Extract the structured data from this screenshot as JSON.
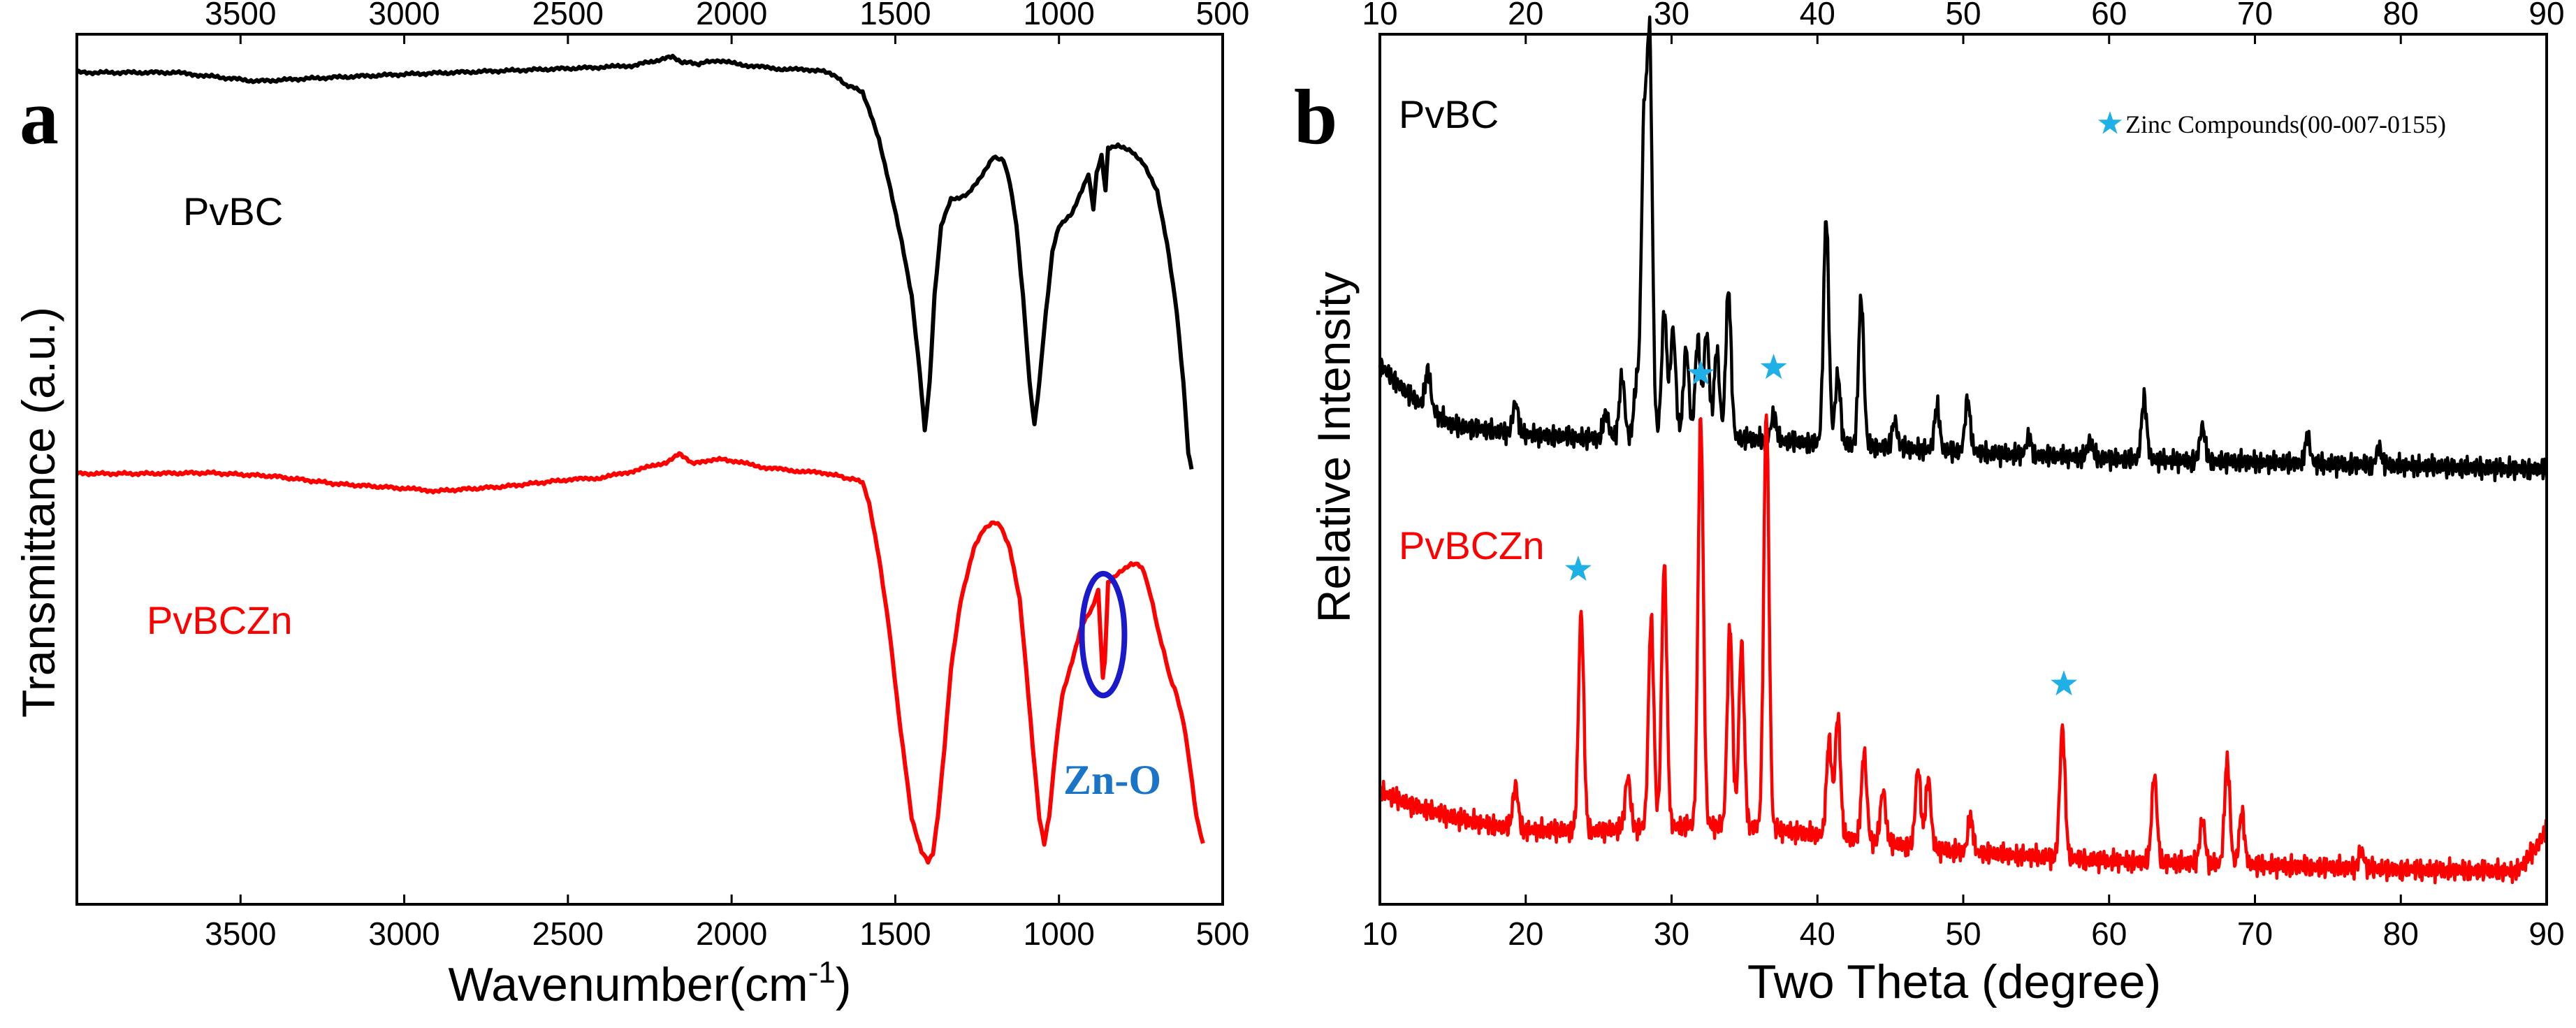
{
  "chart_data": [
    {
      "panel_label": "a",
      "type": "line",
      "xlabel": "Wavenumber(cm",
      "xlabel_sup": "-1",
      "xlabel_end": ")",
      "ylabel": "Transmittance (a.u.)",
      "xlim": [
        4000,
        500
      ],
      "x_reversed": true,
      "xticks": [
        3500,
        3000,
        2500,
        2000,
        1500,
        1000,
        500
      ],
      "ylim": [
        0,
        100
      ],
      "y_values_relative": true,
      "series": [
        {
          "name": "PvBC",
          "color": "#000000",
          "points": [
            [
              4000,
              95.6
            ],
            [
              3700,
              95.6
            ],
            [
              3600,
              95.2
            ],
            [
              3450,
              94.6
            ],
            [
              3300,
              94.9
            ],
            [
              3000,
              95.4
            ],
            [
              2700,
              95.8
            ],
            [
              2400,
              96.2
            ],
            [
              2300,
              96.4
            ],
            [
              2180,
              97.4
            ],
            [
              2150,
              96.8
            ],
            [
              2100,
              96.6
            ],
            [
              2050,
              97.0
            ],
            [
              1950,
              96.4
            ],
            [
              1850,
              96.0
            ],
            [
              1750,
              95.9
            ],
            [
              1700,
              95.6
            ],
            [
              1650,
              94.2
            ],
            [
              1600,
              93.4
            ],
            [
              1550,
              88.0
            ],
            [
              1520,
              83.0
            ],
            [
              1480,
              76.0
            ],
            [
              1450,
              70.0
            ],
            [
              1425,
              61.0
            ],
            [
              1410,
              54.5
            ],
            [
              1395,
              60.0
            ],
            [
              1380,
              70.0
            ],
            [
              1360,
              78.0
            ],
            [
              1330,
              81.0
            ],
            [
              1280,
              81.5
            ],
            [
              1240,
              83.5
            ],
            [
              1200,
              86.0
            ],
            [
              1170,
              85.5
            ],
            [
              1150,
              83.0
            ],
            [
              1130,
              78.0
            ],
            [
              1110,
              70.0
            ],
            [
              1090,
              60.0
            ],
            [
              1075,
              55.0
            ],
            [
              1060,
              60.0
            ],
            [
              1040,
              68.0
            ],
            [
              1020,
              75.0
            ],
            [
              1000,
              78.0
            ],
            [
              960,
              79.5
            ],
            [
              930,
              82.0
            ],
            [
              910,
              84.0
            ],
            [
              895,
              80.0
            ],
            [
              885,
              84.0
            ],
            [
              870,
              86.0
            ],
            [
              858,
              82.0
            ],
            [
              850,
              87.0
            ],
            [
              820,
              87.2
            ],
            [
              780,
              86.5
            ],
            [
              740,
              85.0
            ],
            [
              700,
              82.0
            ],
            [
              670,
              76.0
            ],
            [
              640,
              68.0
            ],
            [
              620,
              60.0
            ],
            [
              605,
              52.0
            ],
            [
              595,
              50.0
            ]
          ]
        },
        {
          "name": "PvBCZn",
          "color": "#ff0000",
          "points": [
            [
              4000,
              49.5
            ],
            [
              3800,
              49.5
            ],
            [
              3600,
              49.6
            ],
            [
              3400,
              49.2
            ],
            [
              3200,
              48.3
            ],
            [
              3000,
              47.8
            ],
            [
              2900,
              47.5
            ],
            [
              2700,
              48.0
            ],
            [
              2500,
              48.8
            ],
            [
              2400,
              49.0
            ],
            [
              2300,
              49.8
            ],
            [
              2200,
              50.8
            ],
            [
              2160,
              51.8
            ],
            [
              2120,
              50.6
            ],
            [
              2050,
              51.2
            ],
            [
              2000,
              51.0
            ],
            [
              1900,
              50.2
            ],
            [
              1800,
              49.8
            ],
            [
              1700,
              49.5
            ],
            [
              1650,
              49.0
            ],
            [
              1600,
              48.6
            ],
            [
              1580,
              46.0
            ],
            [
              1550,
              40.0
            ],
            [
              1520,
              32.0
            ],
            [
              1490,
              22.0
            ],
            [
              1470,
              16.0
            ],
            [
              1450,
              10.0
            ],
            [
              1420,
              6.0
            ],
            [
              1400,
              5.0
            ],
            [
              1385,
              5.8
            ],
            [
              1370,
              10.0
            ],
            [
              1350,
              18.0
            ],
            [
              1330,
              27.0
            ],
            [
              1300,
              35.0
            ],
            [
              1260,
              41.0
            ],
            [
              1230,
              43.0
            ],
            [
              1200,
              44.0
            ],
            [
              1180,
              43.5
            ],
            [
              1150,
              41.0
            ],
            [
              1120,
              35.0
            ],
            [
              1100,
              27.0
            ],
            [
              1080,
              18.0
            ],
            [
              1060,
              10.0
            ],
            [
              1045,
              7.0
            ],
            [
              1030,
              10.0
            ],
            [
              1010,
              18.0
            ],
            [
              990,
              24.0
            ],
            [
              960,
              28.0
            ],
            [
              930,
              32.0
            ],
            [
              900,
              34.0
            ],
            [
              880,
              36.0
            ],
            [
              866,
              26.0
            ],
            [
              860,
              28.0
            ],
            [
              850,
              37.0
            ],
            [
              820,
              38.0
            ],
            [
              780,
              39.0
            ],
            [
              760,
              39.2
            ],
            [
              740,
              38.2
            ],
            [
              720,
              35.5
            ],
            [
              700,
              32.0
            ],
            [
              680,
              29.0
            ],
            [
              660,
              26.0
            ],
            [
              640,
              24.0
            ],
            [
              620,
              21.0
            ],
            [
              600,
              16.0
            ],
            [
              580,
              10.0
            ],
            [
              560,
              7.0
            ]
          ]
        }
      ],
      "annotations": [
        {
          "text": "PvBC",
          "color": "#000000"
        },
        {
          "text": "PvBCZn",
          "color": "#ff0000"
        },
        {
          "text": "Zn-O",
          "color": "#1a75c9",
          "circle_color": "#1a1acc",
          "circle_center": [
            865,
            31
          ],
          "circle_radius_x": [
            800,
            930
          ],
          "circle_radius_y": [
            24,
            38
          ]
        }
      ]
    },
    {
      "panel_label": "b",
      "type": "line",
      "xlabel": "Two Theta (degree)",
      "ylabel": "Relative Intensity",
      "xlim": [
        10,
        90
      ],
      "xticks": [
        10,
        20,
        30,
        40,
        50,
        60,
        70,
        80,
        90
      ],
      "ylim": [
        0,
        100
      ],
      "y_values_relative": true,
      "series": [
        {
          "name": "PvBC",
          "color": "#000000",
          "baseline": [
            [
              10,
              62.0
            ],
            [
              12,
              58.5
            ],
            [
              15,
              55.0
            ],
            [
              20,
              54.0
            ],
            [
              25,
              53.5
            ],
            [
              30,
              54.0
            ],
            [
              35,
              53.5
            ],
            [
              40,
              53.0
            ],
            [
              45,
              52.5
            ],
            [
              50,
              52.0
            ],
            [
              60,
              51.2
            ],
            [
              70,
              50.8
            ],
            [
              80,
              50.4
            ],
            [
              90,
              50.0
            ]
          ],
          "peaks": [
            [
              13.3,
              4.5
            ],
            [
              19.3,
              3.5
            ],
            [
              25.5,
              3.0
            ],
            [
              26.6,
              7.0
            ],
            [
              27.6,
              6.0
            ],
            [
              28.1,
              34.0
            ],
            [
              28.5,
              44.0
            ],
            [
              29.5,
              14.0
            ],
            [
              30.1,
              12.0
            ],
            [
              31.0,
              10.0
            ],
            [
              31.8,
              11.0
            ],
            [
              32.4,
              12.0
            ],
            [
              33.1,
              10.0
            ],
            [
              33.9,
              17.0
            ],
            [
              37.0,
              3.0
            ],
            [
              40.6,
              26.0
            ],
            [
              41.4,
              8.0
            ],
            [
              43.0,
              17.0
            ],
            [
              45.3,
              3.0
            ],
            [
              48.2,
              5.0
            ],
            [
              50.3,
              6.0
            ],
            [
              54.5,
              2.0
            ],
            [
              58.7,
              2.0
            ],
            [
              62.4,
              7.0
            ],
            [
              66.4,
              4.0
            ],
            [
              73.6,
              3.0
            ],
            [
              78.5,
              2.0
            ]
          ]
        },
        {
          "name": "PvBCZn",
          "color": "#ff0000",
          "baseline": [
            [
              10,
              13.0
            ],
            [
              12,
              11.5
            ],
            [
              15,
              10.0
            ],
            [
              18,
              9.0
            ],
            [
              20,
              8.5
            ],
            [
              25,
              8.5
            ],
            [
              30,
              9.0
            ],
            [
              35,
              9.0
            ],
            [
              40,
              8.0
            ],
            [
              45,
              7.0
            ],
            [
              50,
              6.0
            ],
            [
              55,
              5.5
            ],
            [
              60,
              5.0
            ],
            [
              70,
              4.5
            ],
            [
              80,
              4.0
            ],
            [
              88,
              3.8
            ],
            [
              89.5,
              7.0
            ],
            [
              90,
              9.0
            ]
          ],
          "peaks": [
            [
              19.3,
              5.0
            ],
            [
              23.8,
              25.0
            ],
            [
              27.0,
              6.0
            ],
            [
              28.6,
              24.0
            ],
            [
              29.5,
              30.0
            ],
            [
              32.0,
              47.0
            ],
            [
              34.0,
              23.0
            ],
            [
              34.8,
              21.0
            ],
            [
              36.5,
              48.0
            ],
            [
              40.8,
              11.0
            ],
            [
              41.4,
              14.0
            ],
            [
              43.2,
              10.0
            ],
            [
              44.5,
              6.0
            ],
            [
              46.9,
              9.0
            ],
            [
              47.6,
              8.0
            ],
            [
              50.5,
              4.0
            ],
            [
              56.8,
              15.0
            ],
            [
              63.1,
              10.0
            ],
            [
              66.4,
              5.0
            ],
            [
              68.1,
              12.0
            ],
            [
              69.1,
              6.0
            ],
            [
              77.3,
              2.0
            ]
          ]
        }
      ],
      "annotations": [
        {
          "text": "PvBC",
          "color": "#000000"
        },
        {
          "text": "PvBCZn",
          "color": "#ff0000"
        },
        {
          "text": "Zinc Compounds(00-007-0155)",
          "marker": "star",
          "color": "#1fb0e8"
        }
      ],
      "star_markers": [
        23.6,
        32.0,
        37.0,
        56.9
      ]
    }
  ]
}
